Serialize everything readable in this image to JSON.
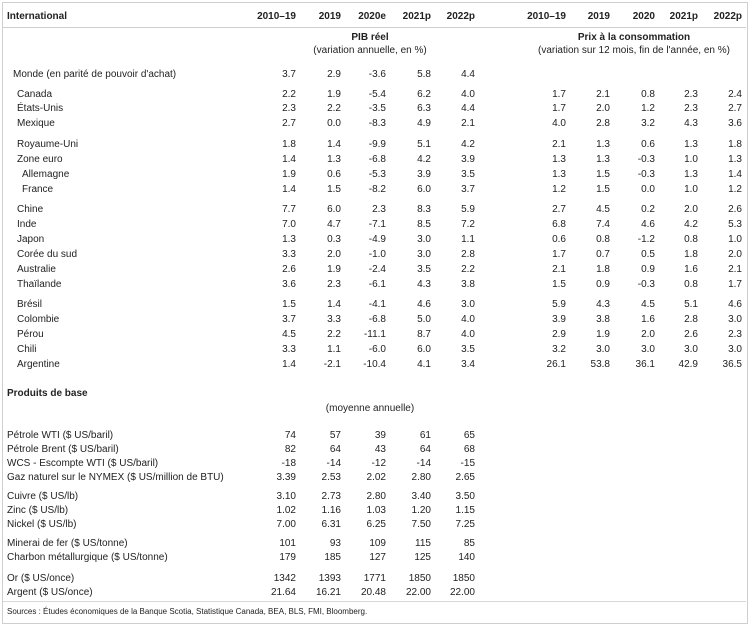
{
  "header": {
    "section_title": "International",
    "gdp_years": [
      "2010–19",
      "2019",
      "2020e",
      "2021p",
      "2022p"
    ],
    "cpi_years": [
      "2010–19",
      "2019",
      "2020",
      "2021p",
      "2022p"
    ],
    "gdp_title": "PIB réel",
    "gdp_subtitle": "(variation annuelle, en %)",
    "cpi_title": "Prix à la consommation",
    "cpi_subtitle": "(variation sur 12 mois, fin de l'année, en %)"
  },
  "countries": [
    {
      "name": "Monde (en parité de pouvoir d'achat)",
      "indent": 0,
      "gdp": [
        "3.7",
        "2.9",
        "-3.6",
        "5.8",
        "4.4"
      ],
      "cpi": []
    },
    {
      "name": "Canada",
      "indent": 1,
      "gdp": [
        "2.2",
        "1.9",
        "-5.4",
        "6.2",
        "4.0"
      ],
      "cpi": [
        "1.7",
        "2.1",
        "0.8",
        "2.3",
        "2.4"
      ]
    },
    {
      "name": "États-Unis",
      "indent": 1,
      "gdp": [
        "2.3",
        "2.2",
        "-3.5",
        "6.3",
        "4.4"
      ],
      "cpi": [
        "1.7",
        "2.0",
        "1.2",
        "2.3",
        "2.7"
      ]
    },
    {
      "name": "Mexique",
      "indent": 1,
      "gdp": [
        "2.7",
        "0.0",
        "-8.3",
        "4.9",
        "2.1"
      ],
      "cpi": [
        "4.0",
        "2.8",
        "3.2",
        "4.3",
        "3.6"
      ]
    },
    {
      "name": "Royaume-Uni",
      "indent": 1,
      "gdp": [
        "1.8",
        "1.4",
        "-9.9",
        "5.1",
        "4.2"
      ],
      "cpi": [
        "2.1",
        "1.3",
        "0.6",
        "1.3",
        "1.8"
      ]
    },
    {
      "name": "Zone euro",
      "indent": 1,
      "gdp": [
        "1.4",
        "1.3",
        "-6.8",
        "4.2",
        "3.9"
      ],
      "cpi": [
        "1.3",
        "1.3",
        "-0.3",
        "1.0",
        "1.3"
      ]
    },
    {
      "name": "Allemagne",
      "indent": 2,
      "gdp": [
        "1.9",
        "0.6",
        "-5.3",
        "3.9",
        "3.5"
      ],
      "cpi": [
        "1.3",
        "1.5",
        "-0.3",
        "1.3",
        "1.4"
      ]
    },
    {
      "name": "France",
      "indent": 2,
      "gdp": [
        "1.4",
        "1.5",
        "-8.2",
        "6.0",
        "3.7"
      ],
      "cpi": [
        "1.2",
        "1.5",
        "0.0",
        "1.0",
        "1.2"
      ]
    },
    {
      "name": "Chine",
      "indent": 1,
      "gdp": [
        "7.7",
        "6.0",
        "2.3",
        "8.3",
        "5.9"
      ],
      "cpi": [
        "2.7",
        "4.5",
        "0.2",
        "2.0",
        "2.6"
      ]
    },
    {
      "name": "Inde",
      "indent": 1,
      "gdp": [
        "7.0",
        "4.7",
        "-7.1",
        "8.5",
        "7.2"
      ],
      "cpi": [
        "6.8",
        "7.4",
        "4.6",
        "4.2",
        "5.3"
      ]
    },
    {
      "name": "Japon",
      "indent": 1,
      "gdp": [
        "1.3",
        "0.3",
        "-4.9",
        "3.0",
        "1.1"
      ],
      "cpi": [
        "0.6",
        "0.8",
        "-1.2",
        "0.8",
        "1.0"
      ]
    },
    {
      "name": "Corée du sud",
      "indent": 1,
      "gdp": [
        "3.3",
        "2.0",
        "-1.0",
        "3.0",
        "2.8"
      ],
      "cpi": [
        "1.7",
        "0.7",
        "0.5",
        "1.8",
        "2.0"
      ]
    },
    {
      "name": "Australie",
      "indent": 1,
      "gdp": [
        "2.6",
        "1.9",
        "-2.4",
        "3.5",
        "2.2"
      ],
      "cpi": [
        "2.1",
        "1.8",
        "0.9",
        "1.6",
        "2.1"
      ]
    },
    {
      "name": "Thaïlande",
      "indent": 1,
      "gdp": [
        "3.6",
        "2.3",
        "-6.1",
        "4.3",
        "3.8"
      ],
      "cpi": [
        "1.5",
        "0.9",
        "-0.3",
        "0.8",
        "1.7"
      ]
    },
    {
      "name": "Brésil",
      "indent": 1,
      "gdp": [
        "1.5",
        "1.4",
        "-4.1",
        "4.6",
        "3.0"
      ],
      "cpi": [
        "5.9",
        "4.3",
        "4.5",
        "5.1",
        "4.6"
      ]
    },
    {
      "name": "Colombie",
      "indent": 1,
      "gdp": [
        "3.7",
        "3.3",
        "-6.8",
        "5.0",
        "4.0"
      ],
      "cpi": [
        "3.9",
        "3.8",
        "1.6",
        "2.8",
        "3.0"
      ]
    },
    {
      "name": "Pérou",
      "indent": 1,
      "gdp": [
        "4.5",
        "2.2",
        "-11.1",
        "8.7",
        "4.0"
      ],
      "cpi": [
        "2.9",
        "1.9",
        "2.0",
        "2.6",
        "2.3"
      ]
    },
    {
      "name": "Chili",
      "indent": 1,
      "gdp": [
        "3.3",
        "1.1",
        "-6.0",
        "6.0",
        "3.5"
      ],
      "cpi": [
        "3.2",
        "3.0",
        "3.0",
        "3.0",
        "3.0"
      ]
    },
    {
      "name": "Argentine",
      "indent": 1,
      "gdp": [
        "1.4",
        "-2.1",
        "-10.4",
        "4.1",
        "3.4"
      ],
      "cpi": [
        "26.1",
        "53.8",
        "36.1",
        "42.9",
        "36.5"
      ]
    }
  ],
  "commodities": {
    "title": "Produits de base",
    "subtitle": "(moyenne annuelle)",
    "rows": [
      {
        "name": "Pétrole WTI ($ US/baril)",
        "values": [
          "74",
          "57",
          "39",
          "61",
          "65"
        ]
      },
      {
        "name": "Pétrole Brent ($ US/baril)",
        "values": [
          "82",
          "64",
          "43",
          "64",
          "68"
        ]
      },
      {
        "name": "WCS - Escompte WTI ($ US/baril)",
        "values": [
          "-18",
          "-14",
          "-12",
          "-14",
          "-15"
        ]
      },
      {
        "name": "Gaz naturel sur le NYMEX ($ US/million de BTU)",
        "values": [
          "3.39",
          "2.53",
          "2.02",
          "2.80",
          "2.65"
        ]
      },
      {
        "name": "Cuivre ($ US/lb)",
        "values": [
          "3.10",
          "2.73",
          "2.80",
          "3.40",
          "3.50"
        ]
      },
      {
        "name": "Zinc ($ US/lb)",
        "values": [
          "1.02",
          "1.16",
          "1.03",
          "1.20",
          "1.15"
        ]
      },
      {
        "name": "Nickel ($ US/lb)",
        "values": [
          "7.00",
          "6.31",
          "6.25",
          "7.50",
          "7.25"
        ]
      },
      {
        "name": "Minerai de fer ($ US/tonne)",
        "values": [
          "101",
          "93",
          "109",
          "115",
          "85"
        ]
      },
      {
        "name": "Charbon métallurgique ($ US/tonne)",
        "values": [
          "179",
          "185",
          "127",
          "125",
          "140"
        ]
      },
      {
        "name": "Or ($ US/once)",
        "values": [
          "1342",
          "1393",
          "1771",
          "1850",
          "1850"
        ]
      },
      {
        "name": "Argent ($ US/once)",
        "values": [
          "21.64",
          "16.21",
          "20.48",
          "22.00",
          "22.00"
        ]
      }
    ]
  },
  "source": "Sources : Études économiques de la Banque Scotia, Statistique Canada, BEA, BLS, FMI, Bloomberg."
}
